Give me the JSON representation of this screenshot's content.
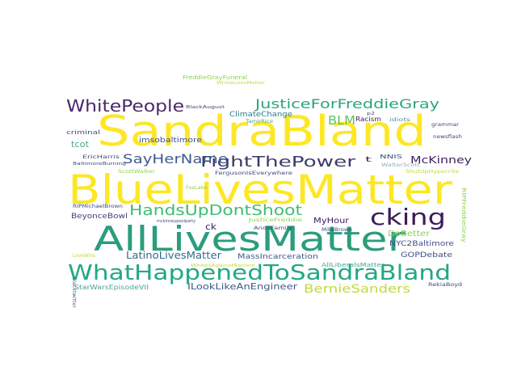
{
  "words": [
    {
      "text": "SandraBland",
      "color": "#fde725"
    },
    {
      "text": "BlueLivesMatter",
      "color": "#fde725"
    },
    {
      "text": "AllLivesMatter",
      "color": "#2a9d7c"
    },
    {
      "text": "WhatHappenedToSandraBland",
      "color": "#22a884"
    },
    {
      "text": "cking",
      "color": "#3b1c5a"
    },
    {
      "text": "HandsUpDontShoot",
      "color": "#3fbc73"
    },
    {
      "text": "FightThePower",
      "color": "#3b3b6b"
    },
    {
      "text": "SayHerName",
      "color": "#3d5a8c"
    },
    {
      "text": "WhitePeople",
      "color": "#4a2a6a"
    },
    {
      "text": "JusticeForFreddieGray",
      "color": "#2aa57e"
    },
    {
      "text": "BLM",
      "color": "#5fc35c"
    },
    {
      "text": "BernieSanders",
      "color": "#c4d83b"
    },
    {
      "text": "McKinney",
      "color": "#3f2060"
    },
    {
      "text": "LatinoLivesMatter",
      "color": "#2f6b8e"
    },
    {
      "text": "ILookLikeAnEngineer",
      "color": "#3d5a8c"
    },
    {
      "text": "tcot",
      "color": "#4ca58e"
    },
    {
      "text": "MyHour",
      "color": "#3f2060"
    },
    {
      "text": "NYC2Baltimore",
      "color": "#3d4f8a"
    },
    {
      "text": "GOPDebate",
      "color": "#3d4f8a"
    },
    {
      "text": "DoBetter",
      "color": "#8fd14f"
    },
    {
      "text": "BeyonceBowl",
      "color": "#4b3a78"
    },
    {
      "text": "MassIncarceration",
      "color": "#3d5a8c"
    },
    {
      "text": "imsobaltimore",
      "color": "#3d4f8a"
    },
    {
      "text": "ClimateChange",
      "color": "#2f7e8e"
    },
    {
      "text": "Racism",
      "color": "#3f2060"
    },
    {
      "text": "idiots",
      "color": "#5b8fa8"
    },
    {
      "text": "grammar",
      "color": "#3f4a7a"
    },
    {
      "text": "newsflash",
      "color": "#3f4a7a"
    },
    {
      "text": "criminal",
      "color": "#3f4a7a"
    },
    {
      "text": "FergusonIsEverywhere",
      "color": "#3f4a7a"
    },
    {
      "text": "MikeBrown",
      "color": "#3f4a7a"
    },
    {
      "text": "NNIS",
      "color": "#3f4a7a"
    },
    {
      "text": "WalterScott",
      "color": "#8fb0b8"
    },
    {
      "text": "EricHarris",
      "color": "#3f4a7a"
    },
    {
      "text": "BaltimoreBurning",
      "color": "#3f4a7a"
    },
    {
      "text": "ScottWalker",
      "color": "#8fd14f"
    },
    {
      "text": "FoxLake",
      "color": "#8fd14f"
    },
    {
      "text": "RIPMichaelBrown",
      "color": "#3f4a7a"
    },
    {
      "text": "ck",
      "color": "#3f2060"
    },
    {
      "text": "AnonFamily",
      "color": "#3f4a7a"
    },
    {
      "text": "JusticeFreddie",
      "color": "#8fd14f"
    },
    {
      "text": "AllLiberalsMatter",
      "color": "#4ca58e"
    },
    {
      "text": "RIPFreddieGray",
      "color": "#8fd14f"
    },
    {
      "text": "StarWarsEpisodeVII",
      "color": "#4ca58e"
    },
    {
      "text": "RekiaBoyd",
      "color": "#3f4a7a"
    },
    {
      "text": "LoveWins",
      "color": "#c4d83b"
    },
    {
      "text": "blacktwitter",
      "color": "#2f6b8e"
    },
    {
      "text": "FreddieGrayFuneral",
      "color": "#8fd14f"
    },
    {
      "text": "BlackAugust",
      "color": "#3f4a7a"
    },
    {
      "text": "TamirRice",
      "color": "#4ca58e"
    },
    {
      "text": "p2",
      "color": "#3f4a7a"
    },
    {
      "text": "t",
      "color": "#3f2060"
    },
    {
      "text": "WhitesAgainstRacism",
      "color": "#c4d83b"
    },
    {
      "text": "ShutUpHypocrite",
      "color": "#c4d83b"
    },
    {
      "text": "WhiteLivesMatter",
      "color": "#c4d83b"
    },
    {
      "text": "mckinneypoolparty",
      "color": "#3f4a7a"
    }
  ]
}
